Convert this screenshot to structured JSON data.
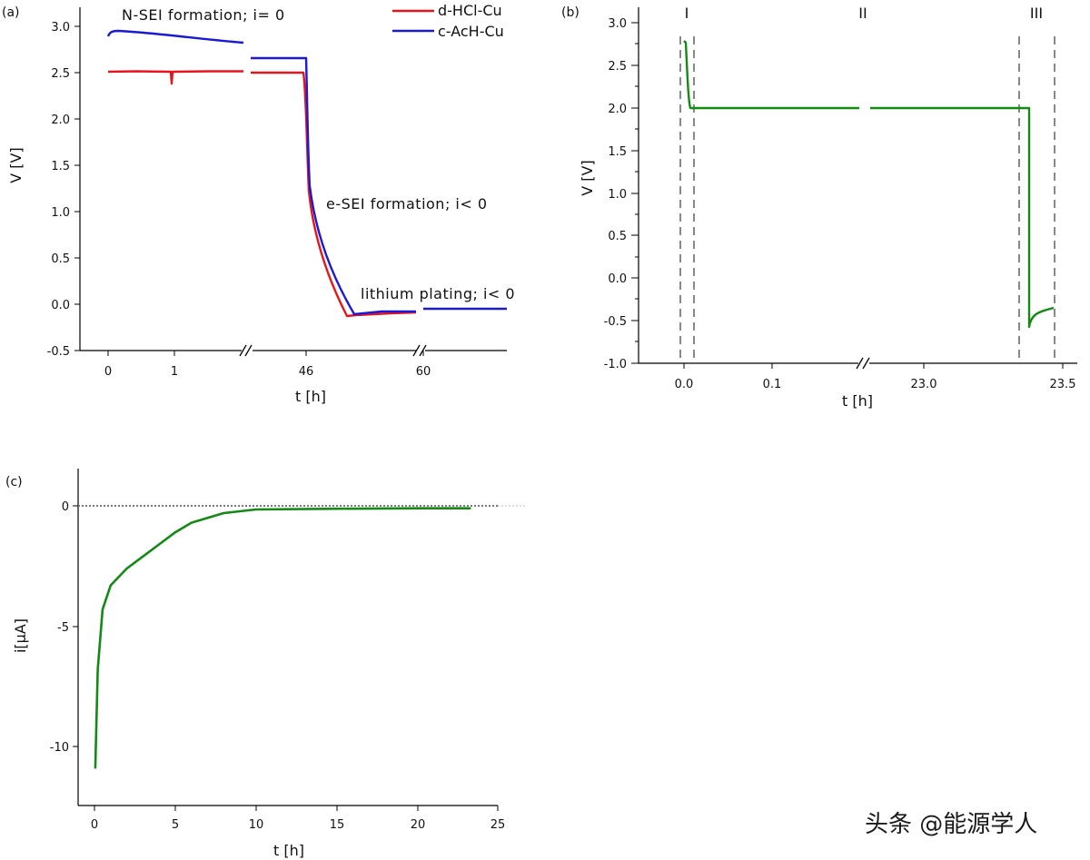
{
  "watermark": "头条 @能源学人",
  "chart_data": [
    {
      "panel": "(a)",
      "type": "line",
      "xlabel": "t [h]",
      "ylabel": "V [V]",
      "ylim": [
        -0.5,
        3.2
      ],
      "yticks": [
        "-0.5",
        "0.0",
        "0.5",
        "1.0",
        "1.5",
        "2.0",
        "2.5",
        "3.0"
      ],
      "xticks": [
        "0",
        "1",
        "46",
        "60"
      ],
      "legend": [
        "d-HCl-Cu",
        "c-AcH-Cu"
      ],
      "legend_position": "top-right",
      "annotations": [
        "N-SEI formation; i= 0",
        "e-SEI formation; i< 0",
        "lithium plating; i< 0"
      ],
      "axis_break": "x, between 1 and 46 and between 46 and 60",
      "series": [
        {
          "name": "d-HCl-Cu",
          "color": "#e8141c",
          "points": [
            [
              "0",
              2.52
            ],
            [
              "1",
              2.53
            ],
            [
              "2",
              2.53
            ],
            [
              "46",
              2.51
            ],
            [
              "47",
              0.5
            ],
            [
              "48",
              -0.12
            ],
            [
              "50",
              -0.08
            ],
            [
              "60",
              -0.07
            ]
          ]
        },
        {
          "name": "c-AcH-Cu",
          "color": "#1a1ad6",
          "points": [
            [
              "0",
              2.92
            ],
            [
              "0.1",
              2.96
            ],
            [
              "1",
              2.91
            ],
            [
              "2",
              2.83
            ],
            [
              "46",
              2.67
            ],
            [
              "47",
              0.5
            ],
            [
              "48",
              -0.1
            ],
            [
              "50",
              -0.06
            ],
            [
              "60",
              -0.05
            ],
            [
              "64",
              -0.05
            ]
          ]
        }
      ]
    },
    {
      "panel": "(b)",
      "type": "line",
      "xlabel": "t [h]",
      "ylabel": "V [V]",
      "ylim": [
        -1.0,
        3.2
      ],
      "yticks": [
        "-1.0",
        "-0.5",
        "0.0",
        "0.5",
        "1.0",
        "1.5",
        "2.0",
        "2.5",
        "3.0"
      ],
      "xticks": [
        "0.0",
        "0.1",
        "23.0",
        "23.5"
      ],
      "regions": [
        "I",
        "II",
        "III"
      ],
      "axis_break": "x, between 0.1 and 23.0",
      "series": [
        {
          "name": "",
          "color": "#138a13",
          "points": [
            [
              "0.0",
              2.77
            ],
            [
              "0.01",
              2.0
            ],
            [
              "0.1",
              2.0
            ],
            [
              "23.0",
              2.0
            ],
            [
              "23.4",
              2.0
            ],
            [
              "23.42",
              -0.58
            ],
            [
              "23.5",
              -0.37
            ]
          ]
        }
      ]
    },
    {
      "panel": "(c)",
      "type": "line",
      "xlabel": "t [h]",
      "ylabel": "i[μA]",
      "xlim": [
        -1,
        25
      ],
      "ylim": [
        -12.5,
        1.5
      ],
      "xticks": [
        "0",
        "5",
        "10",
        "15",
        "20",
        "25"
      ],
      "yticks": [
        "0",
        "-5",
        "-10"
      ],
      "zero_line": "dotted",
      "series": [
        {
          "name": "",
          "color": "#138a13",
          "points": [
            [
              0.05,
              -10.9
            ],
            [
              0.2,
              -6.8
            ],
            [
              0.5,
              -4.3
            ],
            [
              1,
              -3.3
            ],
            [
              2,
              -2.6
            ],
            [
              3,
              -2.1
            ],
            [
              4,
              -1.6
            ],
            [
              5,
              -1.1
            ],
            [
              6,
              -0.7
            ],
            [
              8,
              -0.3
            ],
            [
              10,
              -0.15
            ],
            [
              15,
              -0.12
            ],
            [
              20,
              -0.1
            ],
            [
              23.3,
              -0.1
            ]
          ]
        }
      ]
    }
  ]
}
